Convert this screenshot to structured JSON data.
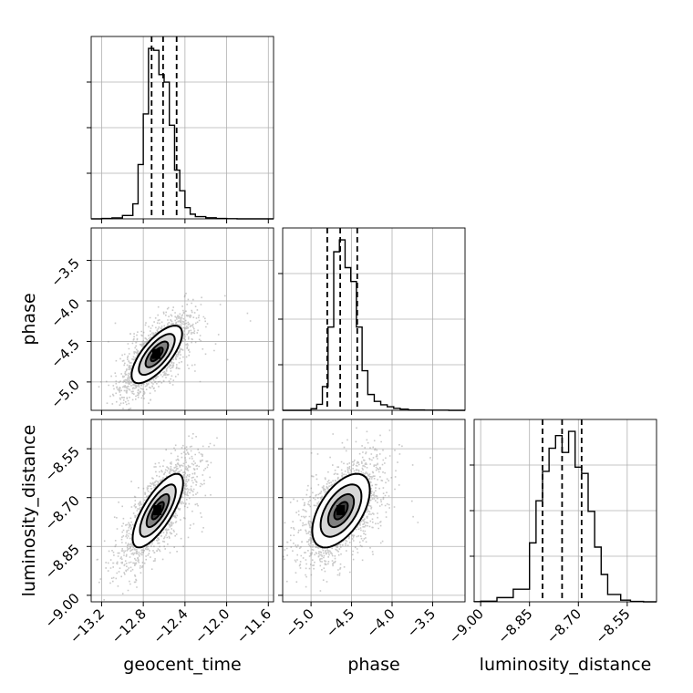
{
  "chart_data": {
    "type": "corner",
    "grid": true,
    "parameters": [
      {
        "key": "geocent_time",
        "label": "geocent_time",
        "range": [
          -13.3,
          -11.55
        ],
        "ticks": [
          -13.2,
          -12.8,
          -12.4,
          -12.0,
          -11.6
        ],
        "tick_labels": [
          "−13.2",
          "−12.8",
          "−12.4",
          "−12.0",
          "−11.6"
        ],
        "quantiles": [
          -12.72,
          -12.61,
          -12.48
        ]
      },
      {
        "key": "phase",
        "label": "phase",
        "range": [
          -5.35,
          -3.1
        ],
        "ticks": [
          -5.0,
          -4.5,
          -4.0,
          -3.5
        ],
        "tick_labels": [
          "−5.0",
          "−4.5",
          "−4.0",
          "−3.5"
        ],
        "quantiles": [
          -4.8,
          -4.64,
          -4.43
        ]
      },
      {
        "key": "luminosity_distance",
        "label": "luminosity_distance",
        "range": [
          -9.02,
          -8.46
        ],
        "ticks": [
          -9.0,
          -8.85,
          -8.7,
          -8.55
        ],
        "tick_labels": [
          "−9.00",
          "−8.85",
          "−8.70",
          "−8.55"
        ],
        "quantiles": [
          -8.81,
          -8.75,
          -8.69
        ]
      }
    ],
    "histograms": [
      {
        "param": "geocent_time",
        "bin_edges": [
          -13.3,
          -13.2,
          -13.1,
          -13.0,
          -12.9,
          -12.85,
          -12.8,
          -12.75,
          -12.7,
          -12.65,
          -12.6,
          -12.55,
          -12.5,
          -12.45,
          -12.4,
          -12.35,
          -12.3,
          -12.2,
          -12.1,
          -12.0,
          -11.9,
          -11.55
        ],
        "counts": [
          0,
          2,
          5,
          18,
          80,
          290,
          560,
          910,
          900,
          770,
          730,
          500,
          260,
          150,
          60,
          25,
          12,
          6,
          2,
          1,
          0
        ]
      },
      {
        "param": "phase",
        "bin_edges": [
          -5.35,
          -5.0,
          -4.93,
          -4.86,
          -4.79,
          -4.72,
          -4.65,
          -4.58,
          -4.51,
          -4.44,
          -4.37,
          -4.3,
          -4.22,
          -4.14,
          -4.06,
          -3.98,
          -3.9,
          -3.8,
          -3.6,
          -3.3,
          -3.1
        ],
        "counts": [
          0,
          8,
          30,
          120,
          420,
          800,
          860,
          720,
          650,
          420,
          200,
          80,
          45,
          28,
          18,
          10,
          6,
          2,
          1,
          0
        ]
      },
      {
        "param": "luminosity_distance",
        "bin_edges": [
          -9.02,
          -9.0,
          -8.95,
          -8.9,
          -8.85,
          -8.83,
          -8.81,
          -8.79,
          -8.77,
          -8.75,
          -8.73,
          -8.71,
          -8.69,
          -8.67,
          -8.65,
          -8.63,
          -8.61,
          -8.57,
          -8.54,
          -8.5,
          -8.46
        ],
        "counts": [
          1,
          3,
          20,
          60,
          280,
          480,
          620,
          730,
          790,
          710,
          810,
          640,
          610,
          430,
          260,
          130,
          35,
          8,
          2,
          0
        ]
      }
    ],
    "pairs": [
      {
        "x": "geocent_time",
        "y": "phase",
        "center": [
          -12.67,
          -4.66
        ],
        "spread": [
          0.15,
          0.22
        ],
        "correlation": 0.72
      },
      {
        "x": "geocent_time",
        "y": "luminosity_distance",
        "center": [
          -12.66,
          -8.74
        ],
        "spread": [
          0.15,
          0.07
        ],
        "correlation": 0.75
      },
      {
        "x": "phase",
        "y": "luminosity_distance",
        "center": [
          -4.63,
          -8.74
        ],
        "spread": [
          0.22,
          0.07
        ],
        "correlation": 0.55
      }
    ]
  }
}
